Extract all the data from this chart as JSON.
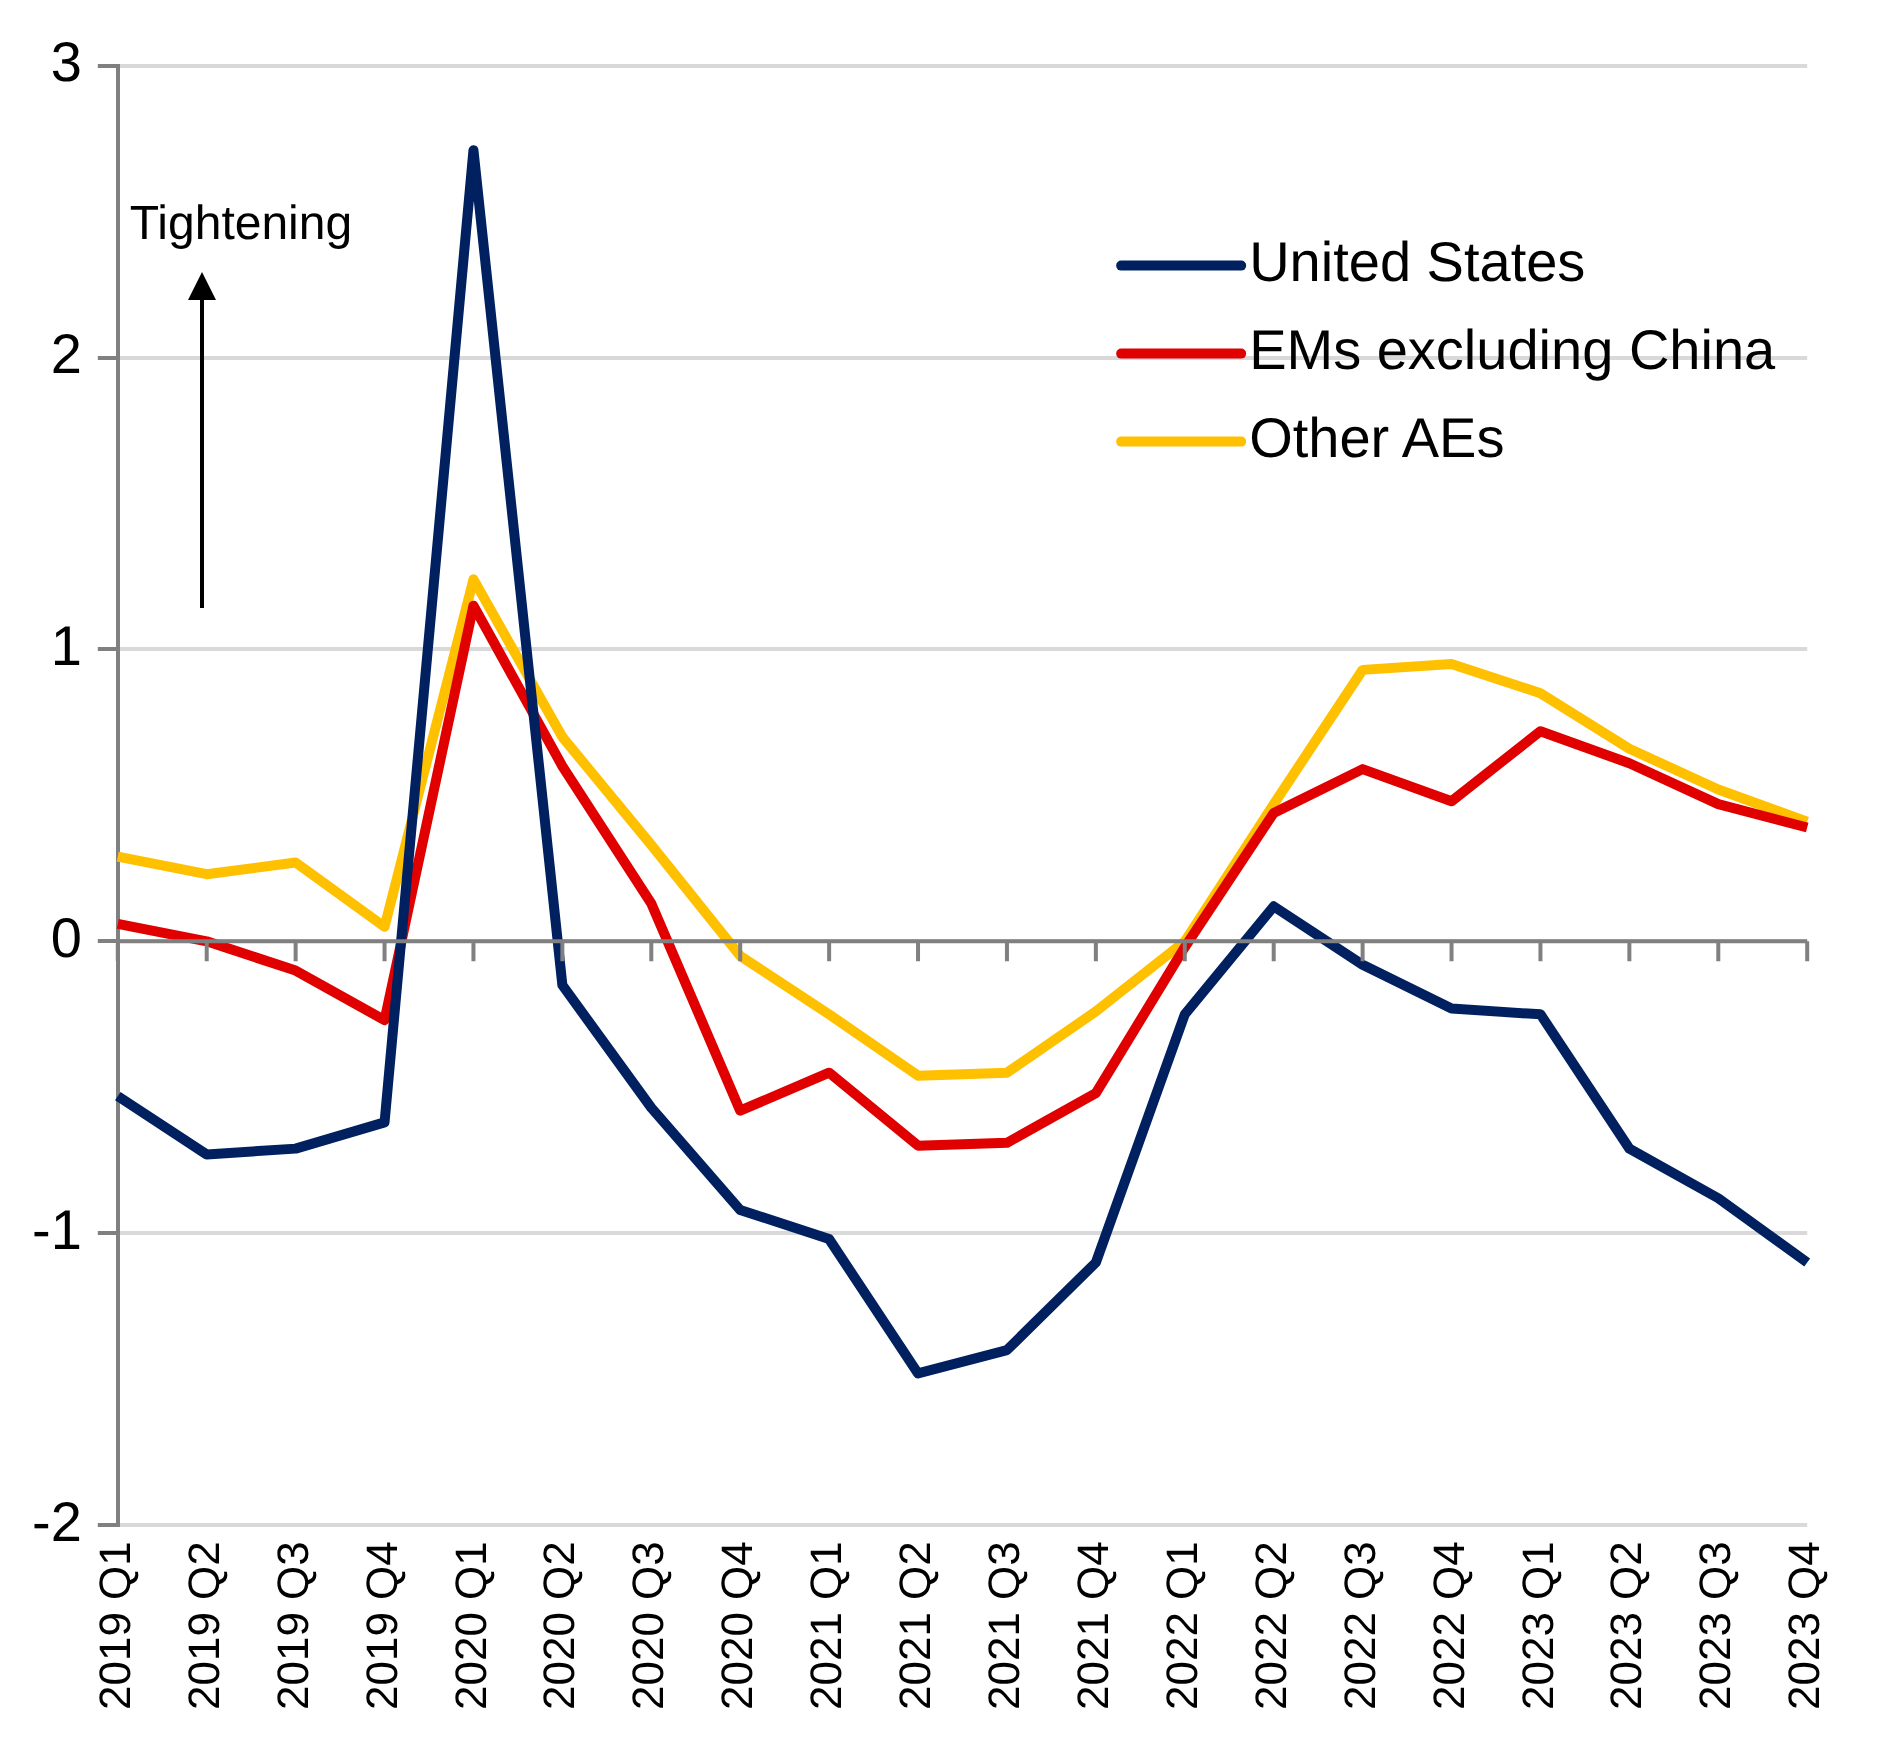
{
  "chart_data": {
    "type": "line",
    "categories": [
      "2019 Q1",
      "2019 Q2",
      "2019 Q3",
      "2019 Q4",
      "2020 Q1",
      "2020 Q2",
      "2020 Q3",
      "2020 Q4",
      "2021 Q1",
      "2021 Q2",
      "2021 Q3",
      "2021 Q4",
      "2022 Q1",
      "2022 Q2",
      "2022 Q3",
      "2022 Q4",
      "2023 Q1",
      "2023 Q2",
      "2023 Q3",
      "2023 Q4"
    ],
    "series": [
      {
        "name": "United States",
        "color": "#002060",
        "values": [
          -0.53,
          -0.73,
          -0.71,
          -0.62,
          2.71,
          -0.15,
          -0.57,
          -0.92,
          -1.02,
          -1.48,
          -1.4,
          -1.1,
          -0.25,
          0.12,
          -0.08,
          -0.23,
          -0.25,
          -0.71,
          -0.88,
          -1.1
        ]
      },
      {
        "name": "EMs excluding China",
        "color": "#e00000",
        "values": [
          0.06,
          0.0,
          -0.1,
          -0.27,
          1.15,
          0.6,
          0.13,
          -0.58,
          -0.45,
          -0.7,
          -0.69,
          -0.52,
          -0.02,
          0.44,
          0.59,
          0.48,
          0.72,
          0.61,
          0.47,
          0.39
        ]
      },
      {
        "name": "Other AEs",
        "color": "#ffc000",
        "values": [
          0.29,
          0.23,
          0.27,
          0.05,
          1.24,
          0.7,
          0.33,
          -0.05,
          -0.25,
          -0.46,
          -0.45,
          -0.24,
          0.0,
          0.47,
          0.93,
          0.95,
          0.85,
          0.66,
          0.52,
          0.41
        ]
      }
    ],
    "ylim": [
      -2,
      3
    ],
    "yticks": [
      -2,
      -1,
      0,
      1,
      2,
      3
    ],
    "grid": "y",
    "legend": "top right",
    "marker": "none",
    "line_style": "solid",
    "annotations": [
      "Tightening"
    ]
  }
}
